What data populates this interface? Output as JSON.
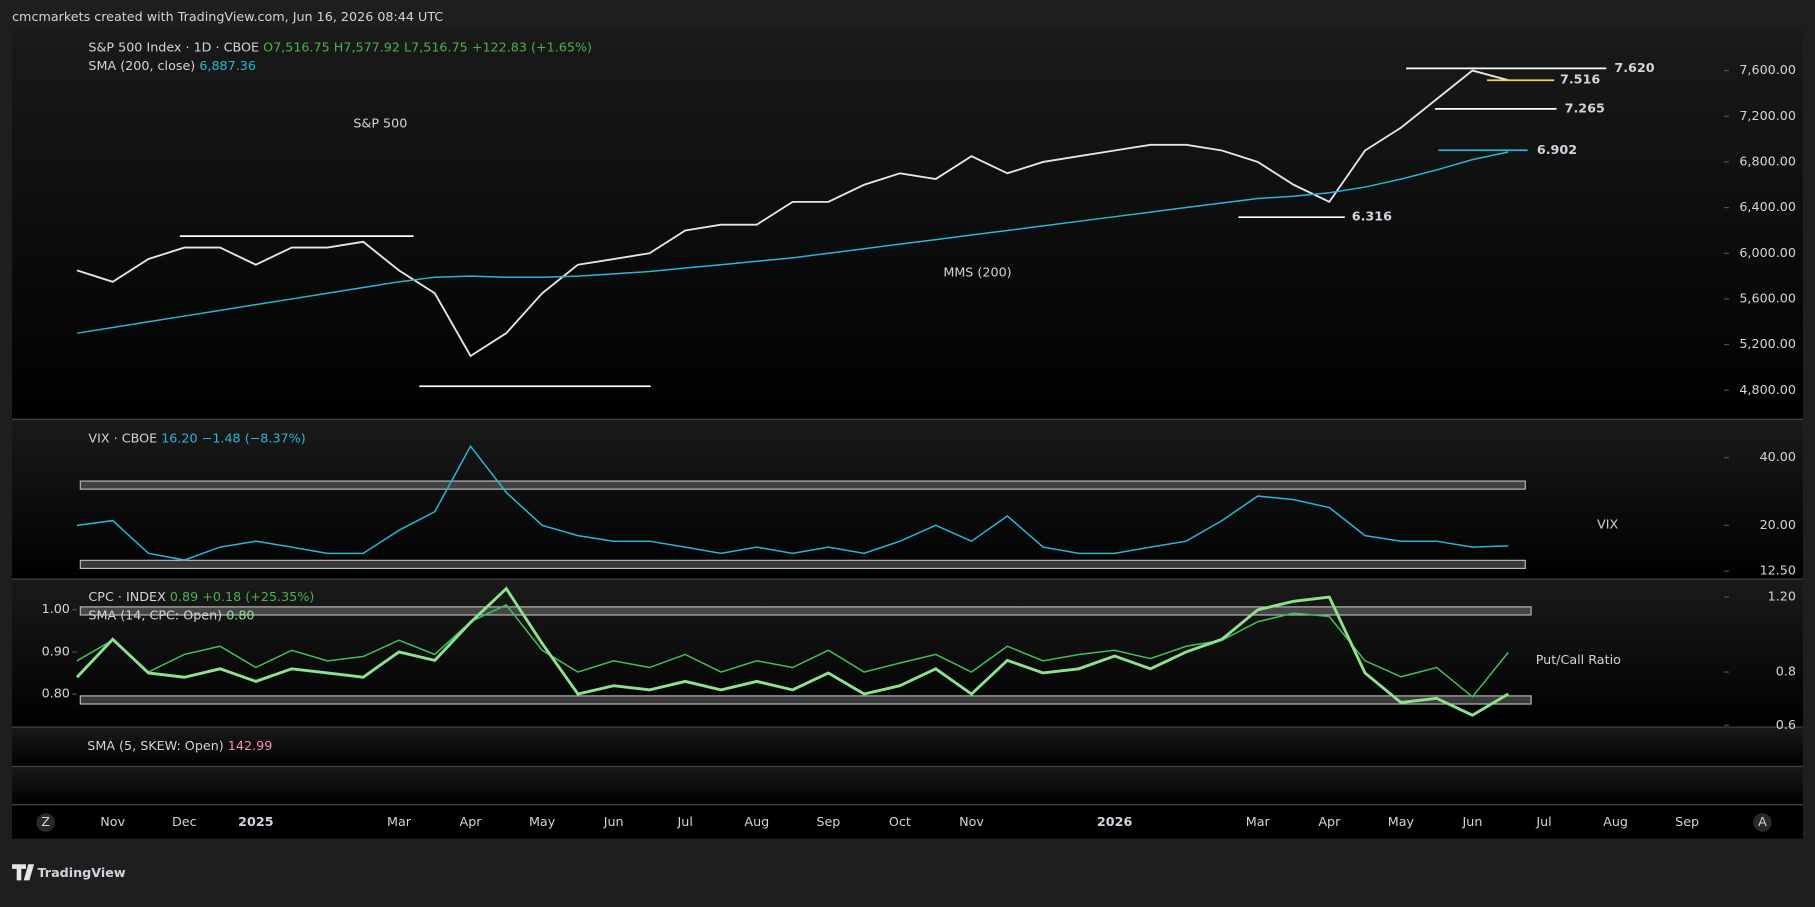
{
  "header": "cmcmarkets created with TradingView.com, Jun 16, 2026 08:44 UTC",
  "footer": {
    "logo": "TradingView"
  },
  "axis_buttons": [
    "Z",
    "A"
  ],
  "skew": {
    "name": "SMA (5, SKEW: Open)",
    "last": "142.99"
  },
  "chart_data": [
    {
      "type": "line",
      "title": "S&P 500",
      "annotation": "MMS (200)",
      "ohlc": "O7,516.75  H7,577.92  L7,516.75",
      "change": "+122.83 (+1.65%)",
      "categories": [
        null,
        "Nov",
        null,
        "Dec",
        null,
        "2025",
        null,
        null,
        null,
        "Mar",
        null,
        "Apr",
        null,
        "May",
        null,
        "Jun",
        null,
        "Jul",
        null,
        "Aug",
        null,
        "Sep",
        null,
        "Oct",
        null,
        "Nov",
        null,
        null,
        null,
        "2026",
        null,
        null,
        null,
        "Mar",
        null,
        "Apr",
        null,
        "May",
        null,
        "Jun",
        null,
        "Jul",
        null,
        "Aug",
        null,
        "Sep"
      ],
      "series": [
        {
          "name": "S&P 500 Index · 1D · CBOE",
          "color": "#e6e6e6",
          "values": [
            5850,
            5750,
            5950,
            6050,
            6050,
            5900,
            6050,
            6050,
            6100,
            5850,
            5650,
            5100,
            5300,
            5650,
            5900,
            5950,
            6000,
            6200,
            6250,
            6250,
            6450,
            6450,
            6600,
            6700,
            6650,
            6850,
            6700,
            6800,
            6850,
            6900,
            6950,
            6950,
            6900,
            6800,
            6600,
            6450,
            6900,
            7100,
            7350,
            7600,
            7516,
            null,
            null,
            null,
            null,
            null
          ]
        },
        {
          "name": "SMA (200, close)",
          "color": "#29b6d6",
          "last": "6,887.36",
          "values": [
            5300,
            5350,
            5400,
            5450,
            5500,
            5550,
            5600,
            5650,
            5700,
            5750,
            5790,
            5800,
            5790,
            5790,
            5800,
            5820,
            5840,
            5870,
            5900,
            5930,
            5960,
            6000,
            6040,
            6080,
            6120,
            6160,
            6200,
            6240,
            6280,
            6320,
            6360,
            6400,
            6440,
            6480,
            6500,
            6530,
            6580,
            6650,
            6730,
            6820,
            6887,
            null,
            null,
            null,
            null,
            null
          ]
        }
      ],
      "ylim": [
        4550,
        7955
      ],
      "yticks": [
        {
          "value": 4800,
          "label": "4,800.00"
        },
        {
          "value": 5200,
          "label": "5,200.00"
        },
        {
          "value": 5600,
          "label": "5,600.00"
        },
        {
          "value": 6000,
          "label": "6,000.00"
        },
        {
          "value": 6400,
          "label": "6,400.00"
        },
        {
          "value": 6800,
          "label": "6,800.00"
        },
        {
          "value": 7200,
          "label": "7,200.00"
        },
        {
          "value": 7600,
          "label": "7,600.00"
        }
      ],
      "levels": [
        {
          "value": 7620,
          "label": "7.620",
          "color": "#ffffff"
        },
        {
          "value": 7516,
          "label": "7.516",
          "color": "#f5d742"
        },
        {
          "value": 7265,
          "label": "7.265",
          "color": "#ffffff"
        },
        {
          "value": 6902,
          "label": "6.902",
          "color": "#29b6d6"
        },
        {
          "value": 6316,
          "label": "6.316",
          "color": "#ffffff"
        }
      ],
      "support_levels": [
        6150,
        4835
      ]
    },
    {
      "type": "line",
      "log": true,
      "annotation": "VIX",
      "series": [
        {
          "name": "VIX · CBOE",
          "color": "#29b6d6",
          "last": "16.20",
          "change": "−1.48 (−8.37%)",
          "values": [
            20,
            21,
            15,
            14,
            16,
            17,
            16,
            15,
            15,
            19,
            23,
            45,
            28,
            20,
            18,
            17,
            17,
            16,
            15,
            16,
            15,
            16,
            15,
            17,
            20,
            17,
            22,
            16,
            15,
            15,
            16,
            17,
            21,
            27,
            26,
            24,
            18,
            17,
            17,
            16,
            16.2,
            null,
            null,
            null,
            null,
            null
          ]
        }
      ],
      "ylim": [
        11.6,
        58.9
      ],
      "yticks": [
        {
          "value": 40,
          "label": "40.00"
        },
        {
          "value": 20,
          "label": "20.00"
        },
        {
          "value": 12.5,
          "label": "12.50"
        }
      ],
      "bands": [
        30.2,
        13.4
      ]
    },
    {
      "type": "line",
      "log": true,
      "annotation": "Put/Call Ratio",
      "series": [
        {
          "name": "CPC · INDEX",
          "color": "#3fbf5a",
          "last": "0.89",
          "change": "+0.18 (+25.35%)",
          "values": [
            0.85,
            0.95,
            0.8,
            0.88,
            0.92,
            0.82,
            0.9,
            0.85,
            0.87,
            0.95,
            0.88,
            1.05,
            1.15,
            0.9,
            0.8,
            0.85,
            0.82,
            0.88,
            0.8,
            0.85,
            0.82,
            0.9,
            0.8,
            0.84,
            0.88,
            0.8,
            0.92,
            0.85,
            0.88,
            0.9,
            0.86,
            0.92,
            0.95,
            1.05,
            1.1,
            1.08,
            0.85,
            0.78,
            0.82,
            0.7,
            0.89,
            null,
            null,
            null,
            null,
            null
          ]
        },
        {
          "name": "SMA (14, CPC: Open)",
          "color": "#8fe08f",
          "axis": "y2",
          "last": "0.80",
          "values": [
            0.84,
            0.93,
            0.85,
            0.84,
            0.86,
            0.83,
            0.86,
            0.85,
            0.84,
            0.9,
            0.88,
            0.97,
            1.05,
            0.92,
            0.8,
            0.82,
            0.81,
            0.83,
            0.81,
            0.83,
            0.81,
            0.85,
            0.8,
            0.82,
            0.86,
            0.8,
            0.88,
            0.85,
            0.86,
            0.89,
            0.86,
            0.9,
            0.93,
            1.0,
            1.02,
            1.03,
            0.85,
            0.78,
            0.79,
            0.75,
            0.8,
            null,
            null,
            null,
            null,
            null
          ]
        }
      ],
      "ylim": [
        0.596,
        1.302
      ],
      "yticks": [
        {
          "value": 1.2,
          "label": "1.20"
        },
        0.8,
        0.6
      ],
      "y2lim": [
        0.723,
        1.066
      ],
      "y2ticks": [
        {
          "value": 1,
          "label": "1.00"
        },
        {
          "value": 0.9,
          "label": "0.90"
        },
        {
          "value": 0.8,
          "label": "0.80"
        }
      ],
      "bands": [
        1.113,
        0.688
      ]
    }
  ]
}
